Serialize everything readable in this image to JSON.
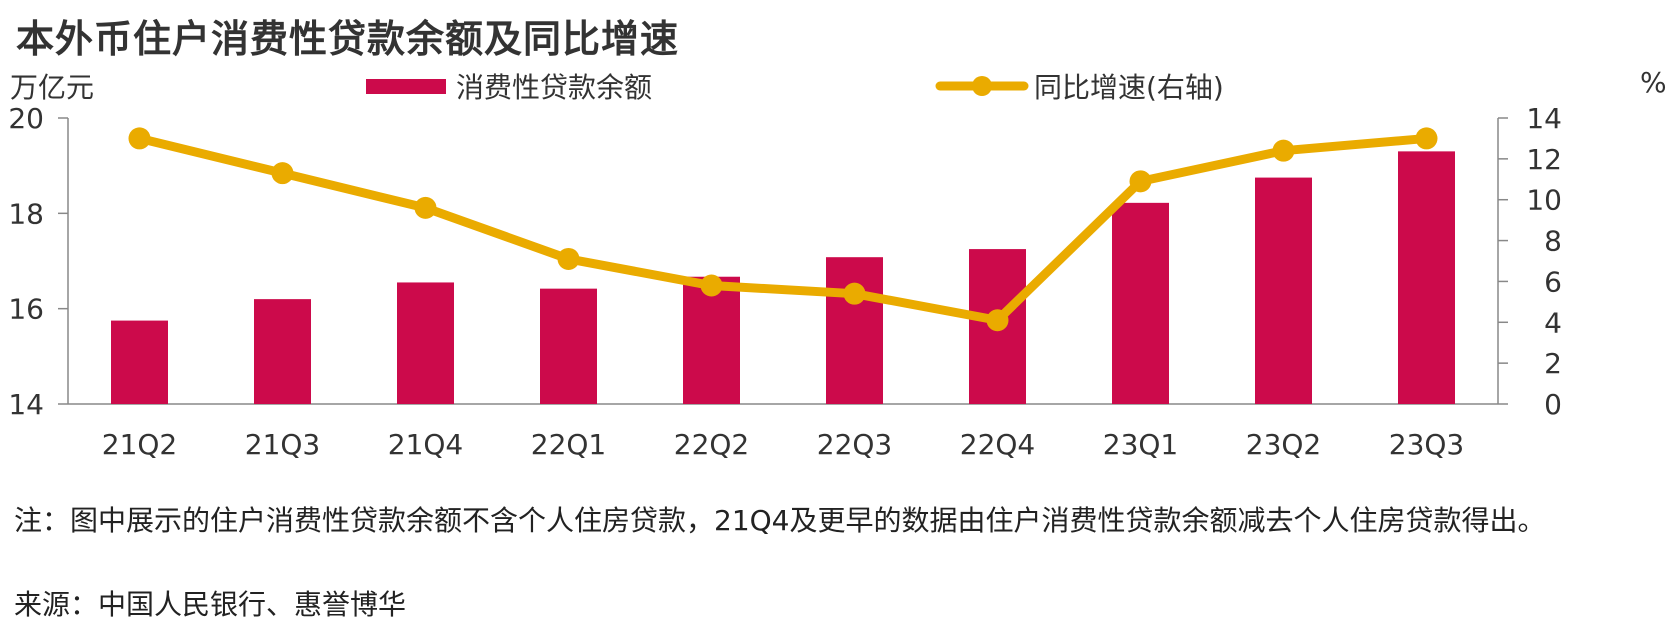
{
  "title": "本外币住户消费性贷款余额及同比增速",
  "chart_data": {
    "type": "bar+line",
    "categories": [
      "21Q2",
      "21Q3",
      "21Q4",
      "22Q1",
      "22Q2",
      "22Q3",
      "22Q4",
      "23Q1",
      "23Q2",
      "23Q3"
    ],
    "series": [
      {
        "name": "消费性贷款余额",
        "type": "bar",
        "axis": "left",
        "values": [
          15.75,
          16.2,
          16.55,
          16.42,
          16.67,
          17.08,
          17.25,
          18.22,
          18.75,
          19.3
        ]
      },
      {
        "name": "同比增速(右轴)",
        "type": "line",
        "axis": "right",
        "values": [
          13.0,
          11.3,
          9.6,
          7.1,
          5.8,
          5.4,
          4.1,
          10.9,
          12.4,
          13.0
        ]
      }
    ],
    "left_axis": {
      "unit": "万亿元",
      "ylim": [
        14,
        20
      ],
      "ticks": [
        14,
        16,
        18,
        20
      ]
    },
    "right_axis": {
      "unit": "%",
      "ylim": [
        0,
        14
      ],
      "ticks": [
        0,
        2,
        4,
        6,
        8,
        10,
        12,
        14
      ]
    },
    "legend_placement": "top-center",
    "grid": false,
    "colors": {
      "bar": "#cc0a4b",
      "line": "#eaab00",
      "axis": "#888888",
      "text": "#333333"
    }
  },
  "notes": {
    "note": "注：图中展示的住户消费性贷款余额不含个人住房贷款，21Q4及更早的数据由住户消费性贷款余额减去个人住房贷款得出。",
    "source": "来源：中国人民银行、惠誉博华"
  }
}
